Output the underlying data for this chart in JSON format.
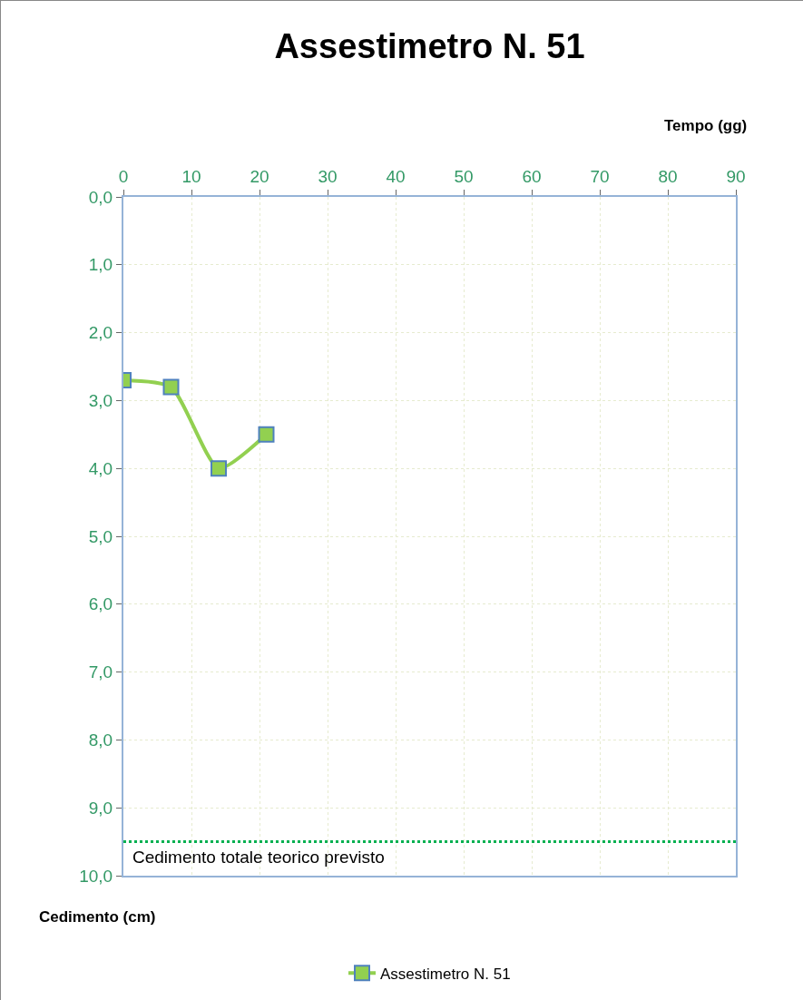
{
  "chart_data": {
    "type": "line",
    "title": "Assestimetro N. 51",
    "xlabel": "Tempo (gg)",
    "ylabel": "Cedimento (cm)",
    "x": [
      0,
      7,
      14,
      21
    ],
    "series": [
      {
        "name": "Assestimetro N. 51",
        "color": "#92d050",
        "values": [
          2.7,
          2.8,
          4.0,
          3.5
        ]
      }
    ],
    "xlim": [
      0,
      90
    ],
    "xticks": [
      0,
      10,
      20,
      30,
      40,
      50,
      60,
      70,
      80,
      90
    ],
    "ylim": [
      10,
      0
    ],
    "yticks": [
      {
        "value": 0,
        "label": "0,0"
      },
      {
        "value": 1,
        "label": "1,0"
      },
      {
        "value": 2,
        "label": "2,0"
      },
      {
        "value": 3,
        "label": "3,0"
      },
      {
        "value": 4,
        "label": "4,0"
      },
      {
        "value": 5,
        "label": "5,0"
      },
      {
        "value": 6,
        "label": "6,0"
      },
      {
        "value": 7,
        "label": "7,0"
      },
      {
        "value": 8,
        "label": "8,0"
      },
      {
        "value": 9,
        "label": "9,0"
      },
      {
        "value": 10,
        "label": "10,0"
      }
    ],
    "ref_lines": [
      {
        "axis": "y",
        "value": 9.5,
        "label": "Cedimento totale teorico previsto",
        "color": "#00b050",
        "line_style": "dotted"
      }
    ],
    "grid": true,
    "legend": "bottom",
    "marker": "square",
    "line_style": "solid"
  }
}
